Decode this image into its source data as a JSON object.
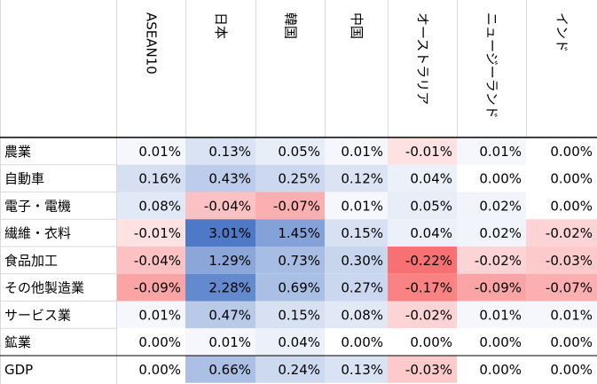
{
  "chart_data": {
    "type": "heatmap",
    "columns": [
      "ASEAN10",
      "日本",
      "韓国",
      "中国",
      "オーストラリア",
      "ニュージーランド",
      "インド"
    ],
    "rows": [
      "農業",
      "自動車",
      "電子・電機",
      "繊維・衣料",
      "食品加工",
      "その他製造業",
      "サービス業",
      "鉱業",
      "GDP"
    ],
    "cells": [
      [
        "0.01%",
        "0.13%",
        "0.05%",
        "0.01%",
        "-0.01%",
        "0.01%",
        "0.00%"
      ],
      [
        "0.16%",
        "0.43%",
        "0.25%",
        "0.12%",
        "0.04%",
        "0.00%",
        "0.00%"
      ],
      [
        "0.08%",
        "-0.04%",
        "-0.07%",
        "0.01%",
        "0.05%",
        "0.02%",
        "0.00%"
      ],
      [
        "-0.01%",
        "3.01%",
        "1.45%",
        "0.15%",
        "0.04%",
        "0.02%",
        "-0.02%"
      ],
      [
        "-0.04%",
        "1.29%",
        "0.73%",
        "0.30%",
        "-0.22%",
        "-0.02%",
        "-0.03%"
      ],
      [
        "-0.09%",
        "2.28%",
        "0.69%",
        "0.27%",
        "-0.17%",
        "-0.09%",
        "-0.07%"
      ],
      [
        "0.01%",
        "0.47%",
        "0.15%",
        "0.08%",
        "-0.02%",
        "0.01%",
        "0.01%"
      ],
      [
        "0.00%",
        "0.01%",
        "0.04%",
        "0.00%",
        "0.00%",
        "0.00%",
        "0.00%"
      ],
      [
        "0.00%",
        "0.66%",
        "0.24%",
        "0.13%",
        "-0.03%",
        "0.00%",
        "0.00%"
      ]
    ],
    "color_scale": {
      "positive_color": "#4472c4",
      "negative_color": "#f8696b",
      "neutral_color": "#ffffff",
      "positive_max": 3.01,
      "negative_min": -0.22,
      "by_row_group": true,
      "separate_group": [
        "GDP"
      ]
    },
    "grid": true
  }
}
